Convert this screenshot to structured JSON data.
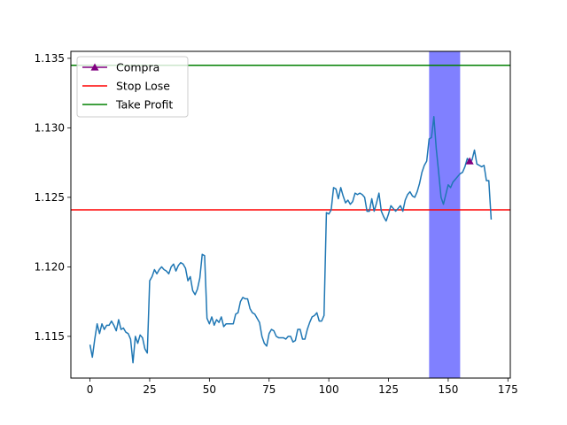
{
  "chart_data": {
    "type": "line",
    "title": "",
    "xlabel": "",
    "ylabel": "",
    "xlim": [
      -8,
      176
    ],
    "ylim": [
      1.112,
      1.1355
    ],
    "xticks": [
      0,
      25,
      50,
      75,
      100,
      125,
      150,
      175
    ],
    "xtick_labels": [
      "0",
      "25",
      "50",
      "75",
      "100",
      "125",
      "150",
      "175"
    ],
    "yticks": [
      1.115,
      1.12,
      1.125,
      1.13,
      1.135
    ],
    "ytick_labels": [
      "1.115",
      "1.120",
      "1.125",
      "1.130",
      "1.135"
    ],
    "grid": false,
    "legend_position": "top-left",
    "colors": {
      "price": "#1f77b4",
      "buy": "#800080",
      "stop_loss": "#ff0000",
      "take_profit": "#008000",
      "span": "#8080ff"
    },
    "highlight_span": [
      142,
      155
    ],
    "stop_loss": 1.1241,
    "take_profit": 1.1345,
    "buy_points": [
      {
        "x": 159,
        "y": 1.1276
      }
    ],
    "legend": [
      {
        "label": "Compra",
        "kind": "marker-line",
        "color": "#800080"
      },
      {
        "label": "Stop Lose",
        "kind": "line",
        "color": "#ff0000"
      },
      {
        "label": "Take Profit",
        "kind": "line",
        "color": "#008000"
      }
    ],
    "series": [
      {
        "values": [
          1.1144,
          1.1135,
          1.1148,
          1.1159,
          1.1152,
          1.1159,
          1.1155,
          1.1158,
          1.1158,
          1.1161,
          1.1158,
          1.1154,
          1.1162,
          1.1155,
          1.1156,
          1.1153,
          1.1152,
          1.1148,
          1.1131,
          1.115,
          1.1145,
          1.1151,
          1.1149,
          1.1141,
          1.1138,
          1.119,
          1.1193,
          1.1198,
          1.1195,
          1.1198,
          1.12,
          1.1198,
          1.1197,
          1.1195,
          1.12,
          1.1202,
          1.1197,
          1.1201,
          1.1203,
          1.1202,
          1.1199,
          1.119,
          1.1193,
          1.1183,
          1.118,
          1.1184,
          1.1192,
          1.1209,
          1.1208,
          1.1163,
          1.1159,
          1.1164,
          1.1158,
          1.1162,
          1.116,
          1.1164,
          1.1157,
          1.1159,
          1.1159,
          1.1159,
          1.1159,
          1.1166,
          1.1167,
          1.1175,
          1.1178,
          1.1177,
          1.1177,
          1.117,
          1.1167,
          1.1166,
          1.1163,
          1.116,
          1.115,
          1.1145,
          1.1143,
          1.1152,
          1.1155,
          1.1154,
          1.115,
          1.1149,
          1.1149,
          1.1149,
          1.1148,
          1.115,
          1.115,
          1.1146,
          1.1147,
          1.1155,
          1.1155,
          1.1148,
          1.1148,
          1.1155,
          1.116,
          1.1164,
          1.1165,
          1.1167,
          1.1161,
          1.1161,
          1.1165,
          1.1239,
          1.1238,
          1.1241,
          1.1257,
          1.1256,
          1.1249,
          1.1257,
          1.1251,
          1.1246,
          1.1248,
          1.1245,
          1.1247,
          1.1253,
          1.1252,
          1.1253,
          1.1252,
          1.125,
          1.124,
          1.124,
          1.1249,
          1.124,
          1.1246,
          1.1253,
          1.124,
          1.1236,
          1.1233,
          1.1238,
          1.1244,
          1.1242,
          1.124,
          1.1242,
          1.1244,
          1.124,
          1.1248,
          1.1252,
          1.1254,
          1.1251,
          1.125,
          1.1254,
          1.126,
          1.1268,
          1.1273,
          1.1276,
          1.1292,
          1.1293,
          1.1308,
          1.1285,
          1.1268,
          1.125,
          1.1245,
          1.1252,
          1.1259,
          1.1257,
          1.1261,
          1.1263,
          1.1265,
          1.1267,
          1.1268,
          1.1272,
          1.1278,
          1.1275,
          1.1277,
          1.1284,
          1.1274,
          1.1273,
          1.1272,
          1.1273,
          1.1262,
          1.1262,
          1.1234
        ]
      }
    ]
  }
}
